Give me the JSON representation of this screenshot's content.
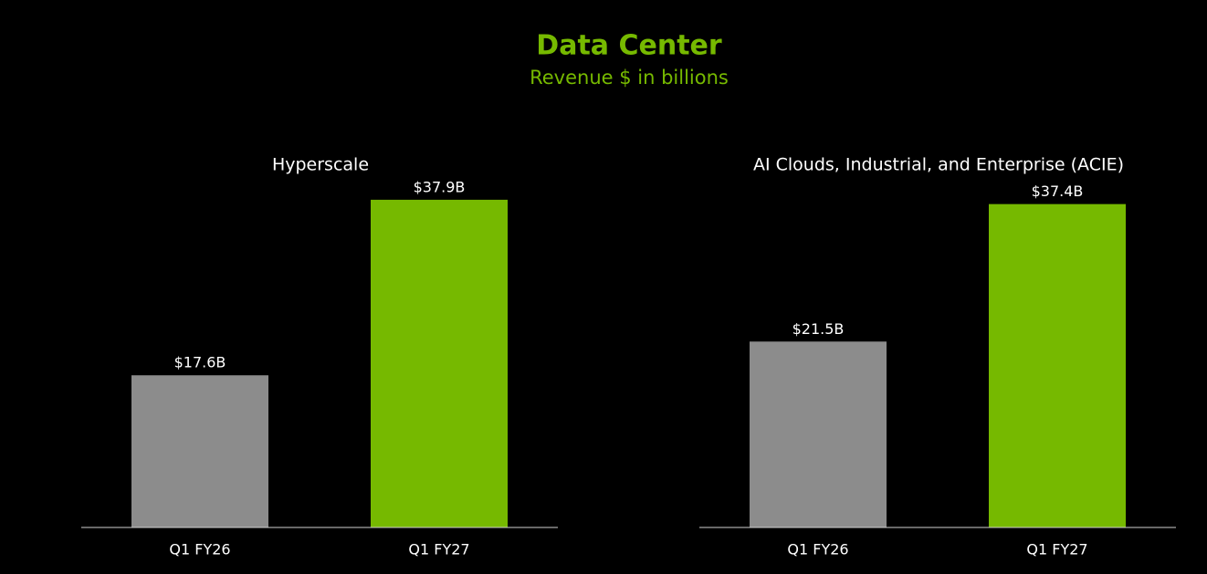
{
  "title": "Data Center",
  "subtitle": "Revenue $ in billions",
  "chart_data": [
    {
      "type": "bar",
      "title": "Hyperscale",
      "categories": [
        "Q1 FY26",
        "Q1 FY27"
      ],
      "values": [
        17.6,
        37.9
      ],
      "value_labels": [
        "$17.6B",
        "$37.9B"
      ],
      "colors": [
        "#8c8c8c",
        "#76b900"
      ],
      "ylim": [
        0,
        40
      ]
    },
    {
      "type": "bar",
      "title": "AI Clouds, Industrial, and Enterprise (ACIE)",
      "categories": [
        "Q1 FY26",
        "Q1 FY27"
      ],
      "values": [
        21.5,
        37.4
      ],
      "value_labels": [
        "$21.5B",
        "$37.4B"
      ],
      "colors": [
        "#8c8c8c",
        "#76b900"
      ],
      "ylim": [
        0,
        40
      ]
    }
  ]
}
